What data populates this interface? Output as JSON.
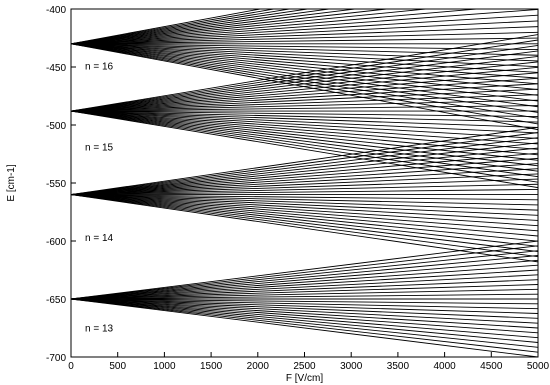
{
  "chart_data": {
    "type": "line",
    "title": "",
    "xlabel": "F [V/cm]",
    "ylabel": "E [cm-1]",
    "xlim": [
      0,
      5000
    ],
    "ylim": [
      -700,
      -400
    ],
    "x_ticks": [
      0,
      500,
      1000,
      1500,
      2000,
      2500,
      3000,
      3500,
      4000,
      4500,
      5000
    ],
    "y_ticks": [
      -400,
      -450,
      -500,
      -550,
      -600,
      -650,
      -700
    ],
    "grid": false,
    "legend": "none",
    "line_color": "#000000",
    "manifolds": [
      {
        "label": "n = 13",
        "n": 13,
        "E0": -650,
        "label_anchor": [
          150,
          -678
        ],
        "levels": 25,
        "max_shift": 50
      },
      {
        "label": "n = 14",
        "n": 14,
        "E0": -560,
        "label_anchor": [
          150,
          -600
        ],
        "levels": 27,
        "max_shift": 58
      },
      {
        "label": "n = 15",
        "n": 15,
        "E0": -488,
        "label_anchor": [
          150,
          -522
        ],
        "levels": 29,
        "max_shift": 66
      },
      {
        "label": "n = 16",
        "n": 16,
        "E0": -430,
        "label_anchor": [
          150,
          -452
        ],
        "levels": 31,
        "max_shift": 74
      }
    ]
  }
}
